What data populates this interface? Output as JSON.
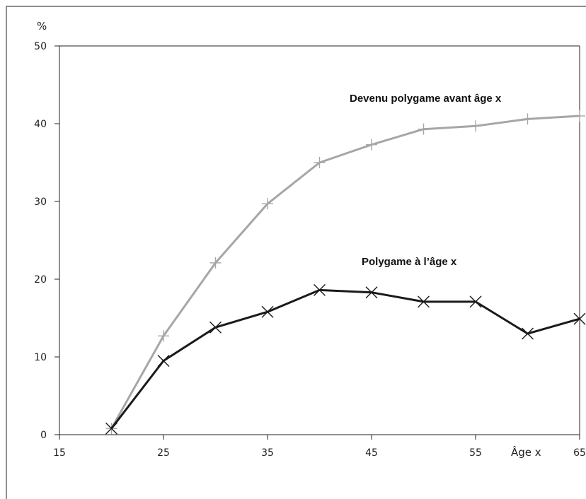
{
  "chart_data": {
    "type": "line",
    "ylabel": "%",
    "xlabel": "Âge  x",
    "xlim": [
      15,
      65
    ],
    "ylim": [
      0,
      50
    ],
    "x_ticks": [
      "15",
      "25",
      "35",
      "45",
      "55",
      "65"
    ],
    "y_ticks": [
      "0",
      "10",
      "20",
      "30",
      "40",
      "50"
    ],
    "x": [
      20,
      25,
      30,
      35,
      40,
      45,
      50,
      55,
      60,
      65
    ],
    "series": [
      {
        "name": "Devenu polygame avant âge x",
        "values": [
          0.8,
          12.7,
          22.1,
          29.7,
          35.0,
          37.3,
          39.3,
          39.7,
          40.6,
          41.0
        ],
        "color": "#a6a6a6",
        "marker": "plus"
      },
      {
        "name": "Polygame à l’âge x",
        "values": [
          0.8,
          9.5,
          13.8,
          15.8,
          18.6,
          18.3,
          17.1,
          17.1,
          13.0,
          14.9
        ],
        "color": "#1a1a1a",
        "marker": "x"
      }
    ],
    "grid": false
  }
}
